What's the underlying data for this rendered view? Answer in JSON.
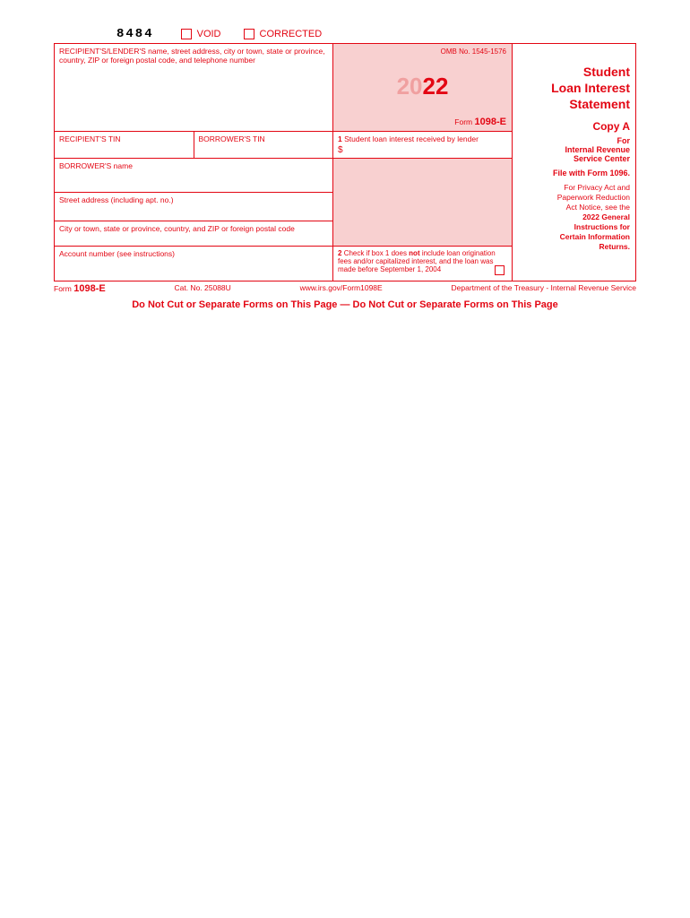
{
  "top": {
    "form_code": "8484",
    "void": "VOID",
    "corrected": "CORRECTED"
  },
  "colors": {
    "primary": "#e30613",
    "pink_bg": "#f8d0d0",
    "light_year": "#f0a0a0"
  },
  "left": {
    "recipient_lender": "RECIPIENT'S/LENDER'S name, street address, city or town, state or province, country, ZIP or foreign postal code, and telephone number",
    "recipient_tin": "RECIPIENT'S TIN",
    "borrower_tin": "BORROWER'S TIN",
    "borrower_name": "BORROWER'S name",
    "street": "Street address (including apt. no.)",
    "city": "City or town, state or province, country, and ZIP or foreign postal code",
    "account": "Account number (see instructions)"
  },
  "mid": {
    "omb": "OMB No. 1545-1576",
    "year_prefix": "20",
    "year_suffix": "22",
    "form_prefix": "Form",
    "form_name": "1098-E",
    "box1_label": "1",
    "box1_text": "Student loan interest received by lender",
    "dollar": "$",
    "box2_label": "2",
    "box2_text": "Check if box 1 does not include loan origination fees and/or capitalized interest, and the loan was made before September 1, 2004"
  },
  "right": {
    "title_l1": "Student",
    "title_l2": "Loan Interest",
    "title_l3": "Statement",
    "copy": "Copy A",
    "for_l1": "For",
    "for_l2": "Internal Revenue",
    "for_l3": "Service Center",
    "file_with": "File with Form 1096.",
    "privacy_l1": "For Privacy Act and",
    "privacy_l2": "Paperwork Reduction",
    "privacy_l3": "Act Notice, see the",
    "privacy_l4": "2022 General",
    "privacy_l5": "Instructions for",
    "privacy_l6": "Certain Information",
    "privacy_l7": "Returns."
  },
  "footer": {
    "form_prefix": "Form",
    "form_name": "1098-E",
    "cat": "Cat. No. 25088U",
    "url": "www.irs.gov/Form1098E",
    "dept": "Department of the Treasury - Internal Revenue Service"
  },
  "cut_line": "Do Not Cut or Separate Forms on This Page — Do Not Cut or Separate Forms on This Page"
}
